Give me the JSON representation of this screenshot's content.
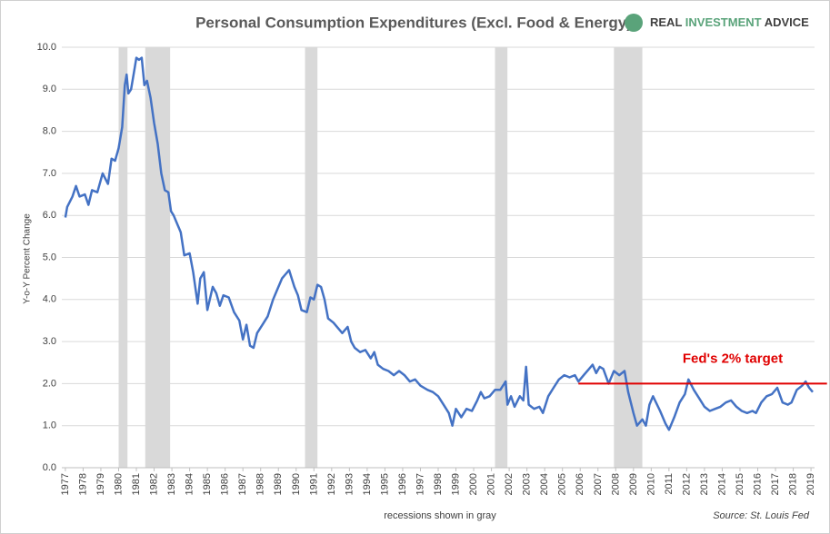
{
  "chart_data": {
    "type": "line",
    "title": "Personal Consumption Expenditures (Excl. Food & Energy)",
    "brand": [
      "REAL",
      "INVESTMENT",
      "ADVICE"
    ],
    "y_label": "Y-o-Y Percent Change",
    "x_note": "recessions shown in gray",
    "source": "Source: St. Louis Fed",
    "x": [
      1977.0,
      1977.1,
      1977.4,
      1977.6,
      1977.8,
      1978.1,
      1978.3,
      1978.5,
      1978.8,
      1979.1,
      1979.4,
      1979.6,
      1979.8,
      1980.0,
      1980.2,
      1980.35,
      1980.45,
      1980.55,
      1980.7,
      1980.9,
      1981.0,
      1981.15,
      1981.3,
      1981.45,
      1981.6,
      1981.8,
      1982.0,
      1982.2,
      1982.4,
      1982.6,
      1982.8,
      1982.95,
      1983.1,
      1983.3,
      1983.5,
      1983.7,
      1984.0,
      1984.2,
      1984.45,
      1984.6,
      1984.8,
      1985.0,
      1985.3,
      1985.5,
      1985.7,
      1985.9,
      1986.2,
      1986.5,
      1986.8,
      1987.0,
      1987.2,
      1987.4,
      1987.6,
      1987.8,
      1988.1,
      1988.4,
      1988.7,
      1988.9,
      1989.2,
      1989.4,
      1989.6,
      1989.9,
      1990.1,
      1990.3,
      1990.6,
      1990.8,
      1991.0,
      1991.2,
      1991.4,
      1991.6,
      1991.8,
      1992.1,
      1992.4,
      1992.6,
      1992.9,
      1993.1,
      1993.3,
      1993.6,
      1993.9,
      1994.2,
      1994.4,
      1994.6,
      1994.9,
      1995.2,
      1995.5,
      1995.8,
      1996.1,
      1996.4,
      1996.7,
      1997.0,
      1997.4,
      1997.7,
      1998.0,
      1998.3,
      1998.6,
      1998.8,
      1999.0,
      1999.3,
      1999.6,
      1999.9,
      2000.2,
      2000.4,
      2000.6,
      2000.9,
      2001.2,
      2001.5,
      2001.8,
      2001.9,
      2002.1,
      2002.3,
      2002.6,
      2002.8,
      2002.95,
      2003.1,
      2003.4,
      2003.7,
      2003.9,
      2004.2,
      2004.5,
      2004.8,
      2005.1,
      2005.4,
      2005.7,
      2005.9,
      2006.2,
      2006.5,
      2006.7,
      2006.9,
      2007.1,
      2007.3,
      2007.6,
      2007.9,
      2008.2,
      2008.5,
      2008.7,
      2009.0,
      2009.2,
      2009.5,
      2009.7,
      2009.9,
      2010.1,
      2010.5,
      2010.8,
      2011.0,
      2011.3,
      2011.6,
      2011.9,
      2012.1,
      2012.4,
      2012.7,
      2013.0,
      2013.3,
      2013.6,
      2013.9,
      2014.2,
      2014.5,
      2014.8,
      2015.1,
      2015.4,
      2015.7,
      2015.9,
      2016.2,
      2016.5,
      2016.8,
      2017.1,
      2017.4,
      2017.7,
      2017.9,
      2018.2,
      2018.5,
      2018.7,
      2018.9,
      2019.1
    ],
    "series": [
      {
        "name": "PCE ex food & energy",
        "color": "#4472c4",
        "values": [
          5.95,
          6.2,
          6.45,
          6.7,
          6.45,
          6.5,
          6.25,
          6.6,
          6.55,
          7.0,
          6.75,
          7.35,
          7.3,
          7.6,
          8.1,
          9.1,
          9.35,
          8.9,
          9.0,
          9.5,
          9.75,
          9.7,
          9.75,
          9.1,
          9.2,
          8.8,
          8.2,
          7.7,
          7.0,
          6.6,
          6.55,
          6.1,
          6.0,
          5.8,
          5.6,
          5.05,
          5.1,
          4.65,
          3.9,
          4.5,
          4.65,
          3.75,
          4.3,
          4.15,
          3.85,
          4.1,
          4.05,
          3.7,
          3.5,
          3.05,
          3.4,
          2.9,
          2.85,
          3.2,
          3.4,
          3.6,
          4.0,
          4.2,
          4.5,
          4.6,
          4.7,
          4.3,
          4.1,
          3.75,
          3.7,
          4.05,
          4.0,
          4.35,
          4.3,
          4.0,
          3.55,
          3.45,
          3.3,
          3.2,
          3.35,
          3.0,
          2.85,
          2.75,
          2.8,
          2.6,
          2.75,
          2.45,
          2.35,
          2.3,
          2.2,
          2.3,
          2.2,
          2.05,
          2.1,
          1.95,
          1.85,
          1.8,
          1.7,
          1.5,
          1.3,
          1.0,
          1.4,
          1.2,
          1.4,
          1.35,
          1.6,
          1.8,
          1.65,
          1.7,
          1.85,
          1.85,
          2.05,
          1.5,
          1.7,
          1.45,
          1.7,
          1.6,
          2.4,
          1.5,
          1.4,
          1.45,
          1.3,
          1.7,
          1.9,
          2.1,
          2.2,
          2.15,
          2.2,
          2.05,
          2.2,
          2.35,
          2.45,
          2.25,
          2.4,
          2.35,
          2.0,
          2.3,
          2.2,
          2.3,
          1.8,
          1.3,
          1.0,
          1.15,
          1.0,
          1.5,
          1.7,
          1.35,
          1.05,
          0.9,
          1.2,
          1.55,
          1.75,
          2.1,
          1.85,
          1.65,
          1.45,
          1.35,
          1.4,
          1.45,
          1.55,
          1.6,
          1.45,
          1.35,
          1.3,
          1.35,
          1.3,
          1.55,
          1.7,
          1.75,
          1.9,
          1.55,
          1.5,
          1.55,
          1.85,
          1.95,
          2.05,
          1.9,
          1.8
        ]
      }
    ],
    "recessions": [
      [
        1980.0,
        1980.5
      ],
      [
        1981.5,
        1982.9
      ],
      [
        1990.5,
        1991.2
      ],
      [
        2001.2,
        2001.9
      ],
      [
        2007.9,
        2009.5
      ]
    ],
    "recession_color": "#d9d9d9",
    "target": {
      "text": "Fed's 2% target",
      "y": 2,
      "x": [
        2005.9,
        2019.9
      ],
      "color": "#e00000"
    },
    "xlim": [
      1976.8,
      2019.2
    ],
    "xticks": [
      1977,
      1978,
      1979,
      1980,
      1981,
      1982,
      1983,
      1984,
      1985,
      1986,
      1987,
      1988,
      1989,
      1990,
      1991,
      1992,
      1993,
      1994,
      1995,
      1996,
      1997,
      1998,
      1999,
      2000,
      2001,
      2002,
      2003,
      2004,
      2005,
      2006,
      2007,
      2008,
      2009,
      2010,
      2011,
      2012,
      2013,
      2014,
      2015,
      2016,
      2017,
      2018,
      2019
    ],
    "ylim": [
      0,
      10
    ],
    "yticks": [
      {
        "value": 0,
        "label": "0.0"
      },
      {
        "value": 1,
        "label": "1.0"
      },
      {
        "value": 2,
        "label": "2.0"
      },
      {
        "value": 3,
        "label": "3.0"
      },
      {
        "value": 4,
        "label": "4.0"
      },
      {
        "value": 5,
        "label": "5.0"
      },
      {
        "value": 6,
        "label": "6.0"
      },
      {
        "value": 7,
        "label": "7.0"
      },
      {
        "value": 8,
        "label": "8.0"
      },
      {
        "value": 9,
        "label": "9.0"
      },
      {
        "value": 10,
        "label": "10.0"
      }
    ],
    "grid": true
  }
}
